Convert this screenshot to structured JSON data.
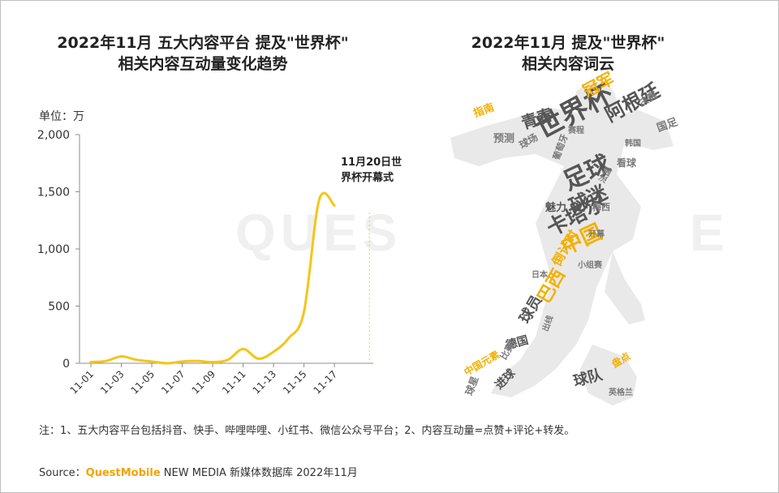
{
  "left_title_line1": "2022年11月 五大内容平台 提及\"世界杯\"",
  "left_title_line2": "相关内容互动量变化趋势",
  "right_title_line1": "2022年11月 提及\"世界杯\"",
  "right_title_line2": "相关内容词云",
  "unit_label": "单位：万",
  "annotation_line1": "11月20日世",
  "annotation_line2": "界杯开幕式",
  "note": "注：1、五大内容平台包括抖音、快手、哔哩哔哩、小红书、微信公众号平台；2、内容互动量=点赞+评论+转发。",
  "source_label": "Source：",
  "source_brand": "QuestMobile",
  "source_text": "NEW MEDIA 新媒体数据库 2022年11月",
  "watermark_left": "QUES",
  "watermark_right": "E",
  "colors": {
    "line": "#F5C518",
    "word_gray": "#7b7b7b",
    "word_dark": "#555555",
    "word_gold": "#F3B000",
    "axis": "#8c8c8c"
  },
  "chart_data": {
    "type": "line",
    "x": [
      "11-01",
      "11-02",
      "11-03",
      "11-04",
      "11-05",
      "11-06",
      "11-07",
      "11-08",
      "11-09",
      "11-10",
      "11-11",
      "11-12",
      "11-13",
      "11-14",
      "11-15",
      "11-16",
      "11-17"
    ],
    "x_tick_labels": [
      "11-01",
      "11-03",
      "11-05",
      "11-07",
      "11-09",
      "11-11",
      "11-13",
      "11-15",
      "11-17"
    ],
    "series": [
      {
        "values": [
          10,
          20,
          60,
          30,
          15,
          0,
          15,
          20,
          10,
          30,
          125,
          40,
          100,
          220,
          450,
          1430,
          1380
        ]
      }
    ],
    "ylim": [
      0,
      2000
    ],
    "y_ticks": [
      0,
      500,
      1000,
      1500,
      2000
    ],
    "y_tick_labels": [
      "0",
      "500",
      "1,000",
      "1,500",
      "2,000"
    ],
    "annotation_x": "11-20",
    "grid": false,
    "smooth": true
  },
  "word_cloud": [
    {
      "text": "世界杯",
      "color": "dark"
    },
    {
      "text": "足球",
      "color": "dark"
    },
    {
      "text": "阿根廷",
      "color": "dark"
    },
    {
      "text": "球迷",
      "color": "dark"
    },
    {
      "text": "卡塔尔",
      "color": "dark"
    },
    {
      "text": "中国",
      "color": "gold"
    },
    {
      "text": "冠军",
      "color": "gold"
    },
    {
      "text": "青春",
      "color": "dark"
    },
    {
      "text": "巴西",
      "color": "gold"
    },
    {
      "text": "球员",
      "color": "dark"
    },
    {
      "text": "球队",
      "color": "dark"
    },
    {
      "text": "倒计时",
      "color": "gold"
    },
    {
      "text": "指南",
      "color": "gold"
    },
    {
      "text": "预测",
      "color": "gray"
    },
    {
      "text": "德国",
      "color": "dark"
    },
    {
      "text": "进球",
      "color": "dark"
    },
    {
      "text": "魅力",
      "color": "dark"
    },
    {
      "text": "决赛",
      "color": "gray"
    },
    {
      "text": "国足",
      "color": "gray"
    },
    {
      "text": "球场",
      "color": "gray"
    },
    {
      "text": "看球",
      "color": "gray"
    },
    {
      "text": "盘点",
      "color": "gold"
    },
    {
      "text": "球星",
      "color": "gray"
    },
    {
      "text": "葡萄牙",
      "color": "gray"
    },
    {
      "text": "比赛",
      "color": "gray"
    },
    {
      "text": "梅西",
      "color": "gray"
    },
    {
      "text": "小组赛",
      "color": "gray"
    },
    {
      "text": "出线",
      "color": "gray"
    },
    {
      "text": "开幕",
      "color": "gray"
    },
    {
      "text": "中国元素",
      "color": "gold"
    },
    {
      "text": "赛程",
      "color": "gray"
    },
    {
      "text": "韩国",
      "color": "gray"
    },
    {
      "text": "英格兰",
      "color": "gray"
    },
    {
      "text": "法国",
      "color": "gray"
    },
    {
      "text": "日本",
      "color": "gray"
    }
  ]
}
